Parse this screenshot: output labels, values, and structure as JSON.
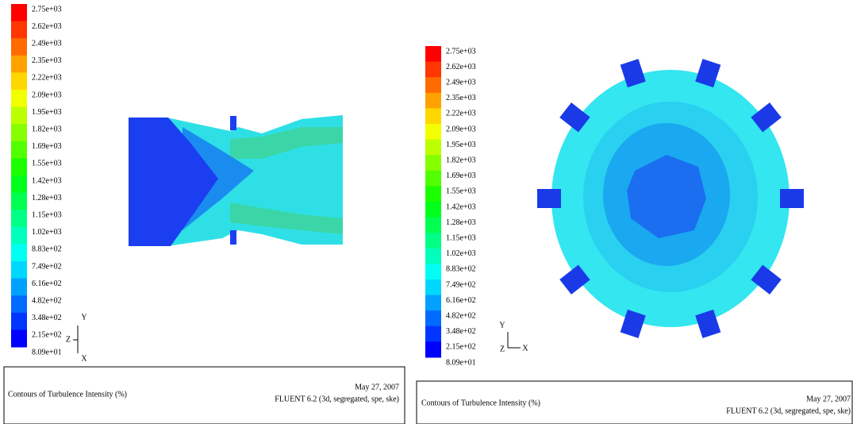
{
  "panels": [
    {
      "colorbar_labels": [
        "2.75e+03",
        "2.62e+03",
        "2.49e+03",
        "2.35e+03",
        "2.22e+03",
        "2.09e+03",
        "1.95e+03",
        "1.82e+03",
        "1.69e+03",
        "1.55e+03",
        "1.42e+03",
        "1.28e+03",
        "1.15e+03",
        "1.02e+03",
        "8.83e+02",
        "7.49e+02",
        "6.16e+02",
        "4.82e+02",
        "3.48e+02",
        "2.15e+02",
        "8.09e+01"
      ],
      "axis_labels": {
        "y": "Y",
        "z": "Z",
        "x": "X"
      },
      "footer": {
        "title": "Contours of Turbulence Intensity (%)",
        "date": "May 27, 2007",
        "software": "FLUENT 6.2 (3d, segregated, spe, ske)"
      }
    },
    {
      "colorbar_labels": [
        "2.75e+03",
        "2.62e+03",
        "2.49e+03",
        "2.35e+03",
        "2.22e+03",
        "2.09e+03",
        "1.95e+03",
        "1.82e+03",
        "1.69e+03",
        "1.55e+03",
        "1.42e+03",
        "1.28e+03",
        "1.15e+03",
        "1.02e+03",
        "8.83e+02",
        "7.49e+02",
        "6.16e+02",
        "4.82e+02",
        "3.48e+02",
        "2.15e+02",
        "8.09e+01"
      ],
      "axis_labels": {
        "y": "Y",
        "z": "Z",
        "x": "X"
      },
      "footer": {
        "title": "Contours of Turbulence Intensity (%)",
        "date": "May 27, 2007",
        "software": "FLUENT 6.2 (3d, segregated, spe, ske)"
      }
    }
  ]
}
